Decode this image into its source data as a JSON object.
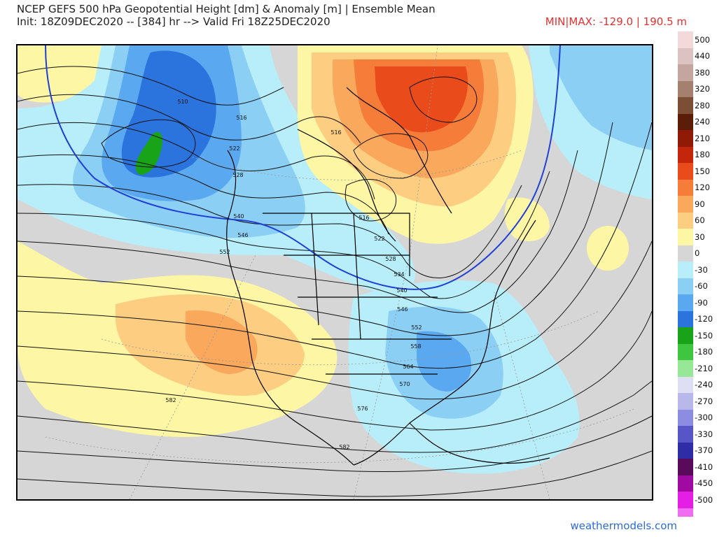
{
  "header": {
    "title_line1": "NCEP GEFS 500 hPa Geopotential Height [dm] & Anomaly [m] | Ensemble Mean",
    "title_line2": "Init: 18Z09DEC2020 -- [384] hr --> Valid Fri 18Z25DEC2020",
    "minmax": "MIN|MAX: -129.0 | 190.5 m"
  },
  "colorbar": {
    "levels": [
      {
        "label": "500",
        "color": "#f3d9d9"
      },
      {
        "label": "440",
        "color": "#dcc2c0"
      },
      {
        "label": "380",
        "color": "#c4a69f"
      },
      {
        "label": "320",
        "color": "#a5806f"
      },
      {
        "label": "280",
        "color": "#7c4e36"
      },
      {
        "label": "240",
        "color": "#5c1d08"
      },
      {
        "label": "210",
        "color": "#901a08"
      },
      {
        "label": "180",
        "color": "#c4260c"
      },
      {
        "label": "150",
        "color": "#ea4b1a"
      },
      {
        "label": "120",
        "color": "#f67c3a"
      },
      {
        "label": "90",
        "color": "#f9a85c"
      },
      {
        "label": "60",
        "color": "#fdcd82"
      },
      {
        "label": "30",
        "color": "#fdf6a4"
      },
      {
        "label": "0",
        "color": "#d6d6d6"
      },
      {
        "label": "-30",
        "color": "#b8eef9"
      },
      {
        "label": "-60",
        "color": "#8ccff5"
      },
      {
        "label": "-90",
        "color": "#5aa8ef"
      },
      {
        "label": "-120",
        "color": "#2b73dd"
      },
      {
        "label": "-150",
        "color": "#18a318"
      },
      {
        "label": "-180",
        "color": "#3fc63f"
      },
      {
        "label": "-210",
        "color": "#96e896"
      },
      {
        "label": "-240",
        "color": "#dedff2"
      },
      {
        "label": "-270",
        "color": "#b8b8ea"
      },
      {
        "label": "-300",
        "color": "#8c8ce0"
      },
      {
        "label": "-330",
        "color": "#5656c9"
      },
      {
        "label": "-370",
        "color": "#2d2da6"
      },
      {
        "label": "-410",
        "color": "#5a0a5a"
      },
      {
        "label": "-450",
        "color": "#a00aa0"
      },
      {
        "label": "-500",
        "color": "#e41ee4"
      }
    ],
    "tail_color": "#f06cf0"
  },
  "map": {
    "contour_labels": [
      "510",
      "516",
      "522",
      "528",
      "540",
      "546",
      "552",
      "516",
      "522",
      "528",
      "534",
      "540",
      "546",
      "552",
      "558",
      "564",
      "570",
      "576",
      "582",
      "582",
      "516"
    ]
  },
  "credit": "weathermodels.com"
}
